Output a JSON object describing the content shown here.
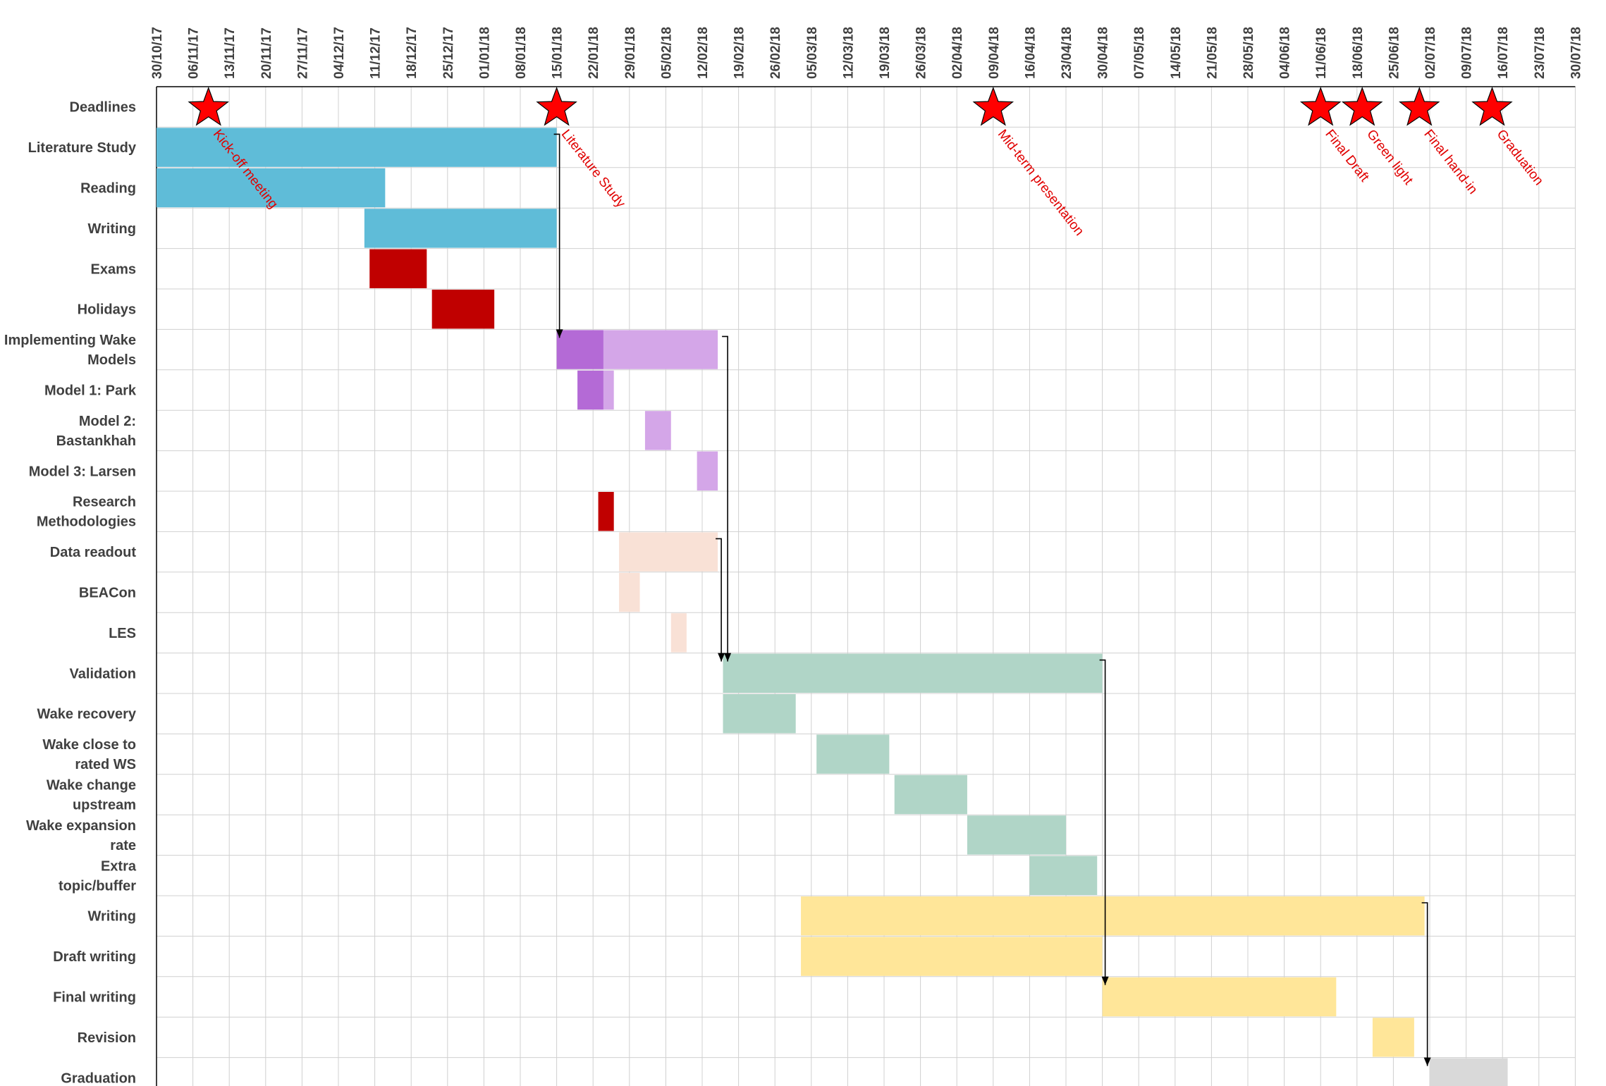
{
  "chart_data": {
    "type": "gantt",
    "dates": [
      "30/10/17",
      "06/11/17",
      "13/11/17",
      "20/11/17",
      "27/11/17",
      "04/12/17",
      "11/12/17",
      "18/12/17",
      "25/12/17",
      "01/01/18",
      "08/01/18",
      "15/01/18",
      "22/01/18",
      "29/01/18",
      "05/02/18",
      "12/02/18",
      "19/02/18",
      "26/02/18",
      "05/03/18",
      "12/03/18",
      "19/03/18",
      "26/03/18",
      "02/04/18",
      "09/04/18",
      "16/04/18",
      "23/04/18",
      "30/04/18",
      "07/05/18",
      "14/05/18",
      "21/05/18",
      "28/05/18",
      "04/06/18",
      "11/06/18",
      "18/06/18",
      "25/06/18",
      "02/07/18",
      "09/07/18",
      "16/07/18",
      "23/07/18",
      "30/07/18"
    ],
    "rows": [
      {
        "label": "Deadlines"
      },
      {
        "label": "Literature Study"
      },
      {
        "label": "Reading"
      },
      {
        "label": "Writing"
      },
      {
        "label": "Exams"
      },
      {
        "label": "Holidays"
      },
      {
        "label": "Implementing Wake Models"
      },
      {
        "label": "Model 1: Park"
      },
      {
        "label": "Model 2: Bastankhah"
      },
      {
        "label": "Model 3: Larsen"
      },
      {
        "label": "Research Methodologies"
      },
      {
        "label": "Data readout"
      },
      {
        "label": "BEACon"
      },
      {
        "label": "LES"
      },
      {
        "label": "Validation"
      },
      {
        "label": "Wake recovery"
      },
      {
        "label": "Wake close to rated WS"
      },
      {
        "label": "Wake change upstream"
      },
      {
        "label": "Wake expansion rate"
      },
      {
        "label": "Extra topic/buffer"
      },
      {
        "label": "Writing"
      },
      {
        "label": "Draft writing"
      },
      {
        "label": "Final writing"
      },
      {
        "label": "Revision"
      },
      {
        "label": "Graduation"
      }
    ],
    "bars": [
      {
        "row": 1,
        "start": "2017-10-30",
        "end": "2018-01-15",
        "color": "#5fbcd8"
      },
      {
        "row": 2,
        "start": "2017-10-30",
        "end": "2017-12-13",
        "color": "#5fbcd8"
      },
      {
        "row": 3,
        "start": "2017-12-09",
        "end": "2018-01-15",
        "color": "#5fbcd8"
      },
      {
        "row": 4,
        "start": "2017-12-10",
        "end": "2017-12-21",
        "color": "#c00000"
      },
      {
        "row": 5,
        "start": "2017-12-22",
        "end": "2018-01-03",
        "color": "#c00000"
      },
      {
        "row": 6,
        "start": "2018-01-15",
        "end": "2018-01-24",
        "color": "#b46ad6"
      },
      {
        "row": 6,
        "start": "2018-01-24",
        "end": "2018-02-15",
        "color": "#d4a6e8"
      },
      {
        "row": 7,
        "start": "2018-01-19",
        "end": "2018-01-24",
        "color": "#b46ad6"
      },
      {
        "row": 7,
        "start": "2018-01-24",
        "end": "2018-01-26",
        "color": "#d4a6e8"
      },
      {
        "row": 8,
        "start": "2018-02-01",
        "end": "2018-02-06",
        "color": "#d4a6e8"
      },
      {
        "row": 9,
        "start": "2018-02-11",
        "end": "2018-02-15",
        "color": "#d4a6e8"
      },
      {
        "row": 10,
        "start": "2018-01-23",
        "end": "2018-01-26",
        "color": "#c00000"
      },
      {
        "row": 11,
        "start": "2018-01-27",
        "end": "2018-02-15",
        "color": "#f9e1d6"
      },
      {
        "row": 12,
        "start": "2018-01-27",
        "end": "2018-01-31",
        "color": "#f9e1d6"
      },
      {
        "row": 13,
        "start": "2018-02-06",
        "end": "2018-02-09",
        "color": "#f9e1d6"
      },
      {
        "row": 14,
        "start": "2018-02-16",
        "end": "2018-04-30",
        "color": "#b0d5c7"
      },
      {
        "row": 15,
        "start": "2018-02-16",
        "end": "2018-03-02",
        "color": "#b0d5c7"
      },
      {
        "row": 16,
        "start": "2018-03-06",
        "end": "2018-03-20",
        "color": "#b0d5c7"
      },
      {
        "row": 17,
        "start": "2018-03-21",
        "end": "2018-04-04",
        "color": "#b0d5c7"
      },
      {
        "row": 18,
        "start": "2018-04-04",
        "end": "2018-04-23",
        "color": "#b0d5c7"
      },
      {
        "row": 19,
        "start": "2018-04-16",
        "end": "2018-04-29",
        "color": "#b0d5c7"
      },
      {
        "row": 20,
        "start": "2018-03-03",
        "end": "2018-07-01",
        "color": "#ffe699"
      },
      {
        "row": 21,
        "start": "2018-03-03",
        "end": "2018-04-30",
        "color": "#ffe699"
      },
      {
        "row": 22,
        "start": "2018-04-30",
        "end": "2018-06-14",
        "color": "#ffe699"
      },
      {
        "row": 23,
        "start": "2018-06-21",
        "end": "2018-06-29",
        "color": "#ffe699"
      },
      {
        "row": 24,
        "start": "2018-07-02",
        "end": "2018-07-17",
        "color": "#d9d9d9"
      }
    ],
    "milestones": [
      {
        "date": "2017-11-09",
        "label": "Kick-off meeting"
      },
      {
        "date": "2018-01-15",
        "label": "Literature Study"
      },
      {
        "date": "2018-04-09",
        "label": "Mid-term presentation"
      },
      {
        "date": "2018-06-11",
        "label": "Final Draft"
      },
      {
        "date": "2018-06-19",
        "label": "Green light"
      },
      {
        "date": "2018-06-30",
        "label": "Final hand-in"
      },
      {
        "date": "2018-07-14",
        "label": "Graduation"
      }
    ],
    "dependencies": [
      {
        "date": "2018-01-15",
        "from_row": 1,
        "to_row": 6
      },
      {
        "date": "2018-02-15",
        "from_row": 6,
        "to_row": 14
      },
      {
        "date": "2018-02-15",
        "from_row": 11,
        "to_row": 14
      },
      {
        "date": "2018-04-30",
        "from_row": 14,
        "to_row": 22
      },
      {
        "date": "2018-07-01",
        "from_row": 20,
        "to_row": 24
      }
    ],
    "milestone_color": "#ff0000",
    "annotation_color": "#e00000",
    "grid": true
  }
}
